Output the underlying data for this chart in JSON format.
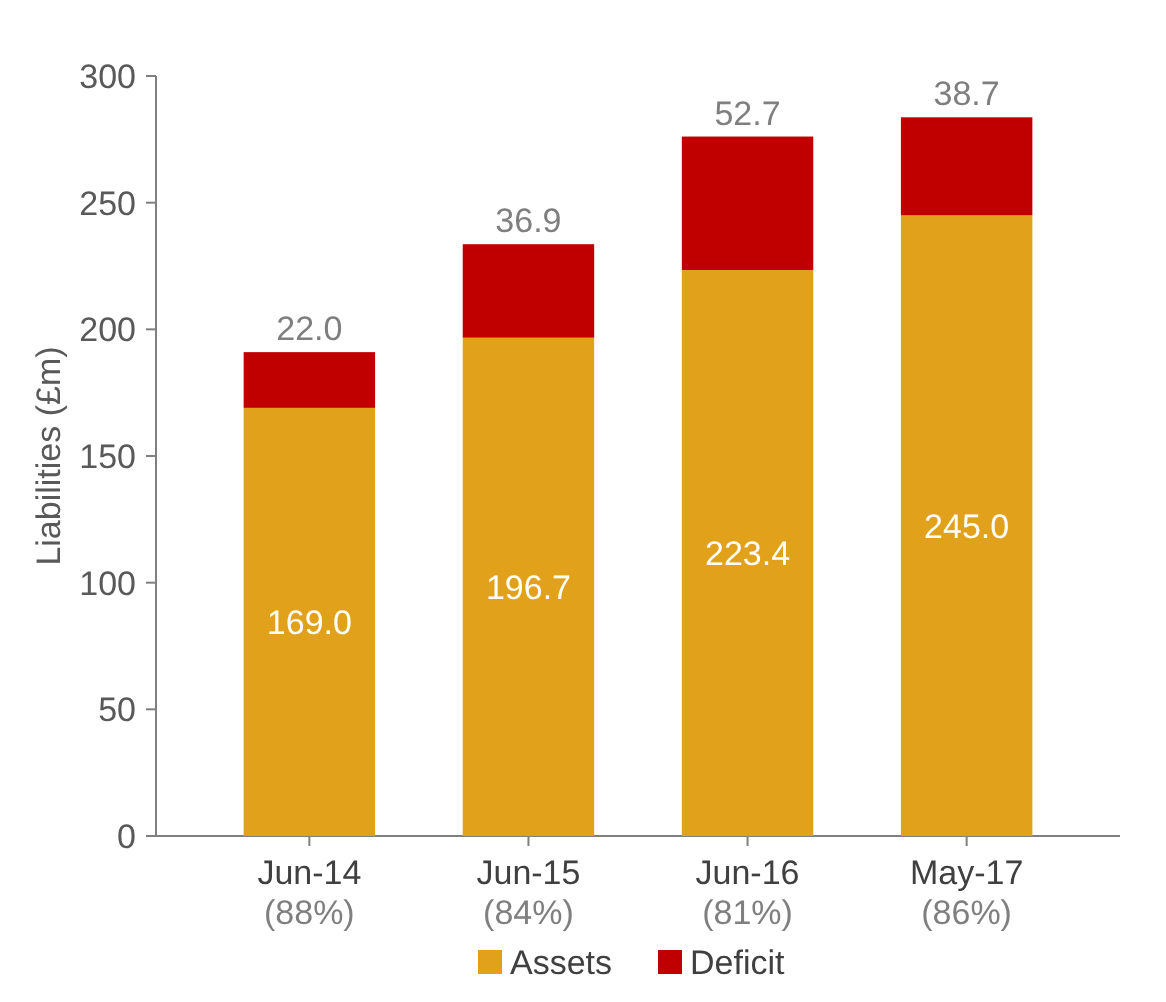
{
  "chart_data": {
    "type": "bar",
    "ylabel": "Liabilities (£m)",
    "categories": [
      "Jun-14\n(88%)",
      "Jun-15\n(84%)",
      "Jun-16\n(81%)",
      "May-17\n(86%)"
    ],
    "series": [
      {
        "name": "Assets",
        "color": "#e2a11b",
        "values": [
          169.0,
          196.7,
          223.4,
          245.0
        ],
        "value_labels": [
          "169.0",
          "196.7",
          "223.4",
          "245.0"
        ]
      },
      {
        "name": "Deficit",
        "color": "#c00000",
        "values": [
          22.0,
          36.9,
          52.7,
          38.7
        ],
        "value_labels": [
          "22.0",
          "36.9",
          "52.7",
          "38.7"
        ]
      }
    ],
    "stacked": true,
    "ylim": [
      0,
      300
    ],
    "yticks": [
      0,
      50,
      100,
      150,
      200,
      250,
      300
    ],
    "legend": "bottom"
  }
}
